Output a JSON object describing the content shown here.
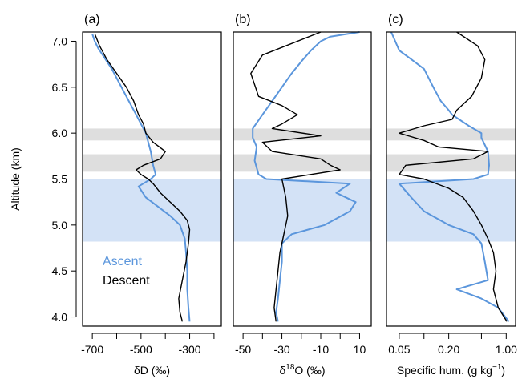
{
  "chart_data": {
    "type": "line",
    "shared_y": {
      "label": "Altitude (km)",
      "ylim": [
        3.9,
        7.1
      ],
      "ticks": [
        4.0,
        4.5,
        5.0,
        5.5,
        6.0,
        6.5,
        7.0
      ],
      "tick_labels": [
        "4.0",
        "4.5",
        "5.0",
        "5.5",
        "6.0",
        "6.5",
        "7.0"
      ]
    },
    "bands": [
      {
        "y0": 5.92,
        "y1": 6.05,
        "color": "#dedede"
      },
      {
        "y0": 5.58,
        "y1": 5.77,
        "color": "#dedede"
      },
      {
        "y0": 4.82,
        "y1": 5.5,
        "color": "#d3e2f6"
      }
    ],
    "colors": {
      "ascent": "#5b96dc",
      "descent": "#000000"
    },
    "legend": {
      "ascent": "Ascent",
      "descent": "Descent",
      "placement": "bottom-left of panel (a)"
    },
    "panels": [
      {
        "label": "(a)",
        "xlabel": "δD (‰)",
        "xlim": [
          -740,
          -170
        ],
        "xscale": "linear",
        "xticks": [
          -700,
          -600,
          -500,
          -400,
          -300,
          -200
        ],
        "xtick_labels": [
          "-700",
          "",
          "-500",
          "",
          "-300",
          ""
        ],
        "series": [
          {
            "key": "ascent",
            "points": [
              [
                -700,
                7.08
              ],
              [
                -690,
                7.0
              ],
              [
                -675,
                6.92
              ],
              [
                -650,
                6.82
              ],
              [
                -620,
                6.7
              ],
              [
                -590,
                6.55
              ],
              [
                -560,
                6.4
              ],
              [
                -540,
                6.3
              ],
              [
                -520,
                6.2
              ],
              [
                -500,
                6.1
              ],
              [
                -480,
                6.0
              ],
              [
                -470,
                5.9
              ],
              [
                -460,
                5.8
              ],
              [
                -450,
                5.65
              ],
              [
                -440,
                5.55
              ],
              [
                -460,
                5.5
              ],
              [
                -510,
                5.42
              ],
              [
                -480,
                5.3
              ],
              [
                -430,
                5.2
              ],
              [
                -380,
                5.1
              ],
              [
                -340,
                5.0
              ],
              [
                -320,
                4.85
              ],
              [
                -315,
                4.7
              ],
              [
                -310,
                4.5
              ],
              [
                -310,
                4.3
              ],
              [
                -305,
                4.1
              ],
              [
                -300,
                3.95
              ]
            ]
          },
          {
            "key": "descent",
            "points": [
              [
                -690,
                7.08
              ],
              [
                -670,
                6.95
              ],
              [
                -640,
                6.8
              ],
              [
                -600,
                6.65
              ],
              [
                -560,
                6.5
              ],
              [
                -530,
                6.35
              ],
              [
                -510,
                6.2
              ],
              [
                -490,
                6.1
              ],
              [
                -480,
                6.0
              ],
              [
                -450,
                5.9
              ],
              [
                -400,
                5.8
              ],
              [
                -420,
                5.72
              ],
              [
                -490,
                5.65
              ],
              [
                -520,
                5.6
              ],
              [
                -500,
                5.55
              ],
              [
                -470,
                5.5
              ],
              [
                -450,
                5.45
              ],
              [
                -420,
                5.35
              ],
              [
                -380,
                5.25
              ],
              [
                -340,
                5.15
              ],
              [
                -310,
                5.05
              ],
              [
                -300,
                4.95
              ],
              [
                -305,
                4.8
              ],
              [
                -315,
                4.6
              ],
              [
                -330,
                4.4
              ],
              [
                -345,
                4.2
              ],
              [
                -340,
                4.05
              ],
              [
                -330,
                3.95
              ]
            ]
          }
        ]
      },
      {
        "label": "(b)",
        "xlabel": "δ18O (‰)",
        "xlim": [
          -55,
          16
        ],
        "xscale": "linear",
        "xticks": [
          -50,
          -40,
          -30,
          -20,
          -10,
          0,
          10
        ],
        "xtick_labels": [
          "-50",
          "",
          "-30",
          "",
          "-10",
          "",
          "10"
        ],
        "series": [
          {
            "key": "ascent",
            "points": [
              [
                10,
                7.1
              ],
              [
                -5,
                7.05
              ],
              [
                -10,
                7.0
              ],
              [
                -15,
                6.9
              ],
              [
                -20,
                6.78
              ],
              [
                -25,
                6.65
              ],
              [
                -30,
                6.5
              ],
              [
                -35,
                6.35
              ],
              [
                -40,
                6.2
              ],
              [
                -45,
                6.05
              ],
              [
                -45,
                5.95
              ],
              [
                -43,
                5.85
              ],
              [
                -44,
                5.7
              ],
              [
                -42,
                5.55
              ],
              [
                -38,
                5.5
              ],
              [
                5,
                5.45
              ],
              [
                -2,
                5.35
              ],
              [
                8,
                5.25
              ],
              [
                5,
                5.15
              ],
              [
                -8,
                5.0
              ],
              [
                -25,
                4.9
              ],
              [
                -30,
                4.8
              ],
              [
                -30,
                4.6
              ],
              [
                -31,
                4.4
              ],
              [
                -32,
                4.2
              ],
              [
                -33,
                4.05
              ],
              [
                -32,
                3.95
              ]
            ]
          },
          {
            "key": "descent",
            "points": [
              [
                -10,
                7.1
              ],
              [
                -40,
                6.85
              ],
              [
                -46,
                6.65
              ],
              [
                -42,
                6.4
              ],
              [
                -30,
                6.3
              ],
              [
                -22,
                6.2
              ],
              [
                -30,
                6.1
              ],
              [
                -35,
                6.05
              ],
              [
                -10,
                5.97
              ],
              [
                -40,
                5.9
              ],
              [
                -35,
                5.8
              ],
              [
                -10,
                5.72
              ],
              [
                -5,
                5.65
              ],
              [
                0,
                5.6
              ],
              [
                -30,
                5.5
              ],
              [
                -28,
                5.3
              ],
              [
                -27,
                5.1
              ],
              [
                -29,
                4.9
              ],
              [
                -31,
                4.7
              ],
              [
                -32,
                4.5
              ],
              [
                -33,
                4.3
              ],
              [
                -34,
                4.1
              ],
              [
                -33,
                3.95
              ]
            ]
          }
        ]
      },
      {
        "label": "(c)",
        "xlabel": "Specific hum. (g kg−1)",
        "xlim": [
          0.035,
          1.3
        ],
        "xscale": "log",
        "xticks": [
          0.05,
          0.1,
          0.2,
          0.5,
          1.0
        ],
        "xtick_labels": [
          "0.05",
          "",
          "0.20",
          "",
          "1.00"
        ],
        "series": [
          {
            "key": "ascent",
            "points": [
              [
                0.04,
                7.1
              ],
              [
                0.05,
                6.9
              ],
              [
                0.1,
                6.7
              ],
              [
                0.13,
                6.5
              ],
              [
                0.16,
                6.35
              ],
              [
                0.2,
                6.25
              ],
              [
                0.22,
                6.2
              ],
              [
                0.35,
                6.08
              ],
              [
                0.5,
                6.0
              ],
              [
                0.5,
                5.95
              ],
              [
                0.6,
                5.8
              ],
              [
                0.62,
                5.65
              ],
              [
                0.6,
                5.55
              ],
              [
                0.4,
                5.5
              ],
              [
                0.05,
                5.45
              ],
              [
                0.07,
                5.3
              ],
              [
                0.1,
                5.15
              ],
              [
                0.2,
                5.0
              ],
              [
                0.4,
                4.9
              ],
              [
                0.5,
                4.8
              ],
              [
                0.55,
                4.6
              ],
              [
                0.6,
                4.4
              ],
              [
                0.25,
                4.3
              ],
              [
                0.5,
                4.2
              ],
              [
                0.8,
                4.1
              ],
              [
                1.08,
                3.95
              ]
            ]
          },
          {
            "key": "descent",
            "points": [
              [
                0.25,
                7.1
              ],
              [
                0.45,
                6.95
              ],
              [
                0.55,
                6.8
              ],
              [
                0.5,
                6.6
              ],
              [
                0.38,
                6.4
              ],
              [
                0.25,
                6.25
              ],
              [
                0.22,
                6.15
              ],
              [
                0.1,
                6.08
              ],
              [
                0.05,
                6.0
              ],
              [
                0.1,
                5.92
              ],
              [
                0.15,
                5.85
              ],
              [
                0.6,
                5.8
              ],
              [
                0.4,
                5.72
              ],
              [
                0.06,
                5.65
              ],
              [
                0.05,
                5.55
              ],
              [
                0.1,
                5.5
              ],
              [
                0.2,
                5.4
              ],
              [
                0.3,
                5.3
              ],
              [
                0.4,
                5.15
              ],
              [
                0.5,
                5.0
              ],
              [
                0.6,
                4.85
              ],
              [
                0.7,
                4.7
              ],
              [
                0.75,
                4.5
              ],
              [
                0.7,
                4.3
              ],
              [
                0.8,
                4.1
              ],
              [
                1.02,
                3.95
              ]
            ]
          }
        ]
      }
    ]
  }
}
